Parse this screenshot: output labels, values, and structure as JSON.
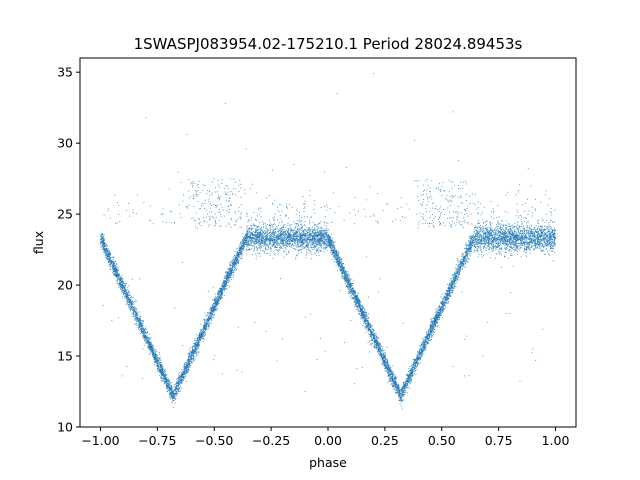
{
  "chart_data": {
    "type": "scatter",
    "title": "1SWASPJ083954.02-175210.1 Period 28024.89453s",
    "xlabel": "phase",
    "ylabel": "flux",
    "xlim": [
      -1.09,
      1.09
    ],
    "ylim": [
      10,
      36
    ],
    "xticks": [
      -1.0,
      -0.75,
      -0.5,
      -0.25,
      0.0,
      0.25,
      0.5,
      0.75,
      1.0
    ],
    "xtick_labels": [
      "−1.00",
      "−0.75",
      "−0.50",
      "−0.25",
      "0.00",
      "0.25",
      "0.50",
      "0.75",
      "1.00"
    ],
    "yticks": [
      10,
      15,
      20,
      25,
      30,
      35
    ],
    "ytick_labels": [
      "10",
      "15",
      "20",
      "25",
      "30",
      "35"
    ],
    "grid": false,
    "marker_color": "#1f77b4",
    "baseline_flux": 23.3,
    "baseline_scatter": 0.45,
    "eclipses": [
      {
        "center_phase": -0.68,
        "half_width": 0.32,
        "min_flux": 12.2
      },
      {
        "center_phase": 0.32,
        "half_width": 0.32,
        "min_flux": 12.2
      }
    ],
    "elevated_regions": [
      {
        "center_phase": -0.5,
        "half_width": 0.12,
        "flux_range": [
          24,
          27.5
        ]
      },
      {
        "center_phase": 0.5,
        "half_width": 0.12,
        "flux_range": [
          24,
          27.5
        ]
      }
    ],
    "outliers": [
      [
        -0.62,
        30.6
      ],
      [
        -0.45,
        32.8
      ],
      [
        -0.36,
        29.6
      ],
      [
        0.04,
        33.5
      ],
      [
        0.38,
        30.2
      ],
      [
        0.55,
        32.2
      ],
      [
        -0.8,
        31.8
      ],
      [
        0.2,
        34.9
      ],
      [
        -0.15,
        28.5
      ],
      [
        0.88,
        28.2
      ],
      [
        -0.2,
        16.2
      ],
      [
        0.1,
        17.5
      ],
      [
        0.68,
        15.0
      ],
      [
        0.8,
        18.0
      ],
      [
        -0.95,
        17.5
      ],
      [
        -0.4,
        14.0
      ],
      [
        0.6,
        13.6
      ],
      [
        -0.1,
        12.5
      ],
      [
        0.15,
        14.2
      ],
      [
        0.9,
        15.5
      ]
    ]
  }
}
